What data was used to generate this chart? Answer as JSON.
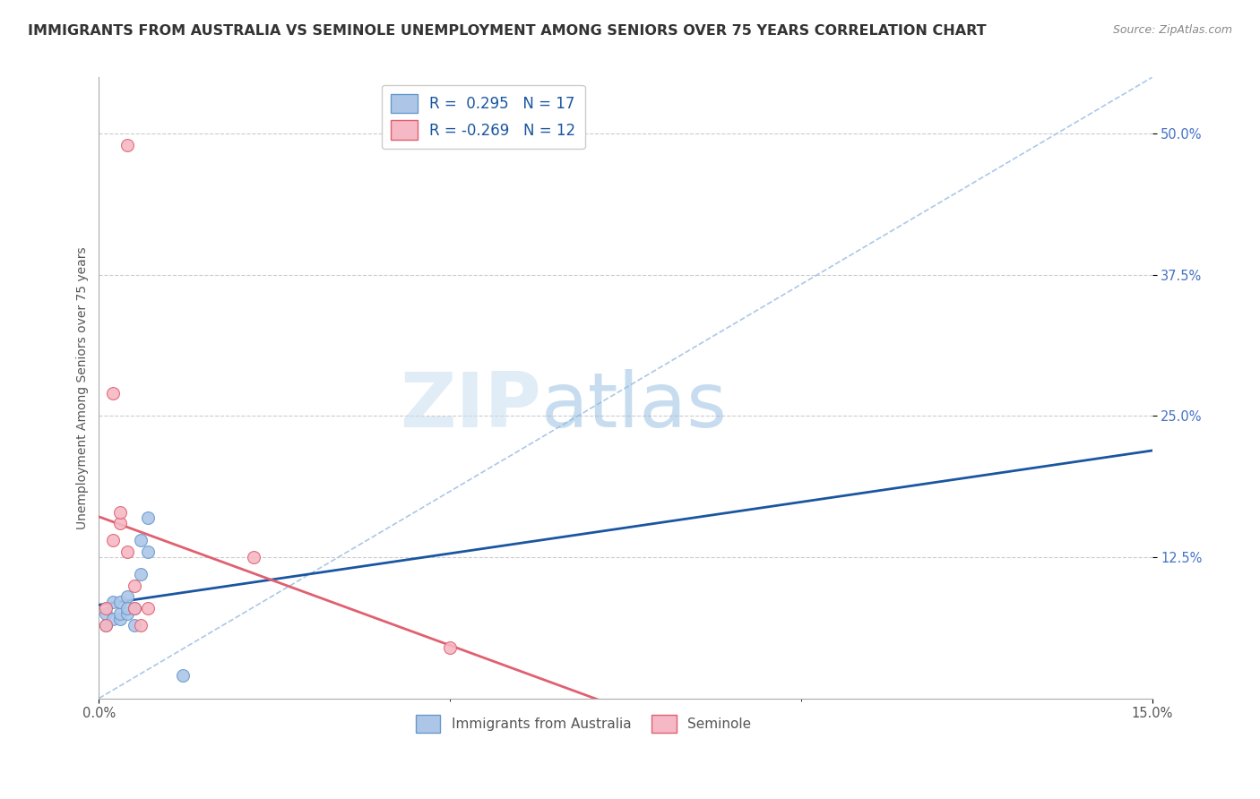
{
  "title": "IMMIGRANTS FROM AUSTRALIA VS SEMINOLE UNEMPLOYMENT AMONG SENIORS OVER 75 YEARS CORRELATION CHART",
  "source": "Source: ZipAtlas.com",
  "ylabel": "Unemployment Among Seniors over 75 years",
  "xlim": [
    0.0,
    0.15
  ],
  "ylim": [
    0.0,
    0.55
  ],
  "ytick_positions": [
    0.125,
    0.25,
    0.375,
    0.5
  ],
  "ytick_labels": [
    "12.5%",
    "25.0%",
    "37.5%",
    "50.0%"
  ],
  "xtick_positions": [
    0.0,
    0.15
  ],
  "xtick_labels": [
    "0.0%",
    "15.0%"
  ],
  "grid_color": "#cccccc",
  "background_color": "#ffffff",
  "watermark_zip": "ZIP",
  "watermark_atlas": "atlas",
  "series": [
    {
      "name": "Immigrants from Australia",
      "color": "#adc6e8",
      "border_color": "#6699cc",
      "R": 0.295,
      "N": 17,
      "trend_color": "#1a56a0",
      "x": [
        0.001,
        0.001,
        0.002,
        0.002,
        0.003,
        0.003,
        0.003,
        0.004,
        0.004,
        0.004,
        0.005,
        0.005,
        0.006,
        0.006,
        0.007,
        0.007,
        0.012
      ],
      "y": [
        0.065,
        0.075,
        0.07,
        0.085,
        0.07,
        0.075,
        0.085,
        0.075,
        0.09,
        0.08,
        0.08,
        0.065,
        0.14,
        0.11,
        0.13,
        0.16,
        0.02
      ]
    },
    {
      "name": "Seminole",
      "color": "#f5b8c4",
      "border_color": "#e06070",
      "R": -0.269,
      "N": 12,
      "trend_color": "#e06070",
      "x": [
        0.001,
        0.001,
        0.002,
        0.003,
        0.003,
        0.004,
        0.005,
        0.005,
        0.006,
        0.007,
        0.022,
        0.05
      ],
      "y": [
        0.065,
        0.08,
        0.14,
        0.155,
        0.165,
        0.13,
        0.08,
        0.1,
        0.065,
        0.08,
        0.125,
        0.045
      ]
    }
  ],
  "pink_outlier_high1": [
    0.004,
    0.49
  ],
  "pink_outlier_high2": [
    0.002,
    0.27
  ],
  "diag_line_color": "#aac8e8",
  "title_fontsize": 11.5,
  "axis_label_fontsize": 10,
  "tick_fontsize": 10.5,
  "marker_size": 100,
  "legend_R_color": "#1a56a0",
  "legend_N_color": "#1a56a0"
}
